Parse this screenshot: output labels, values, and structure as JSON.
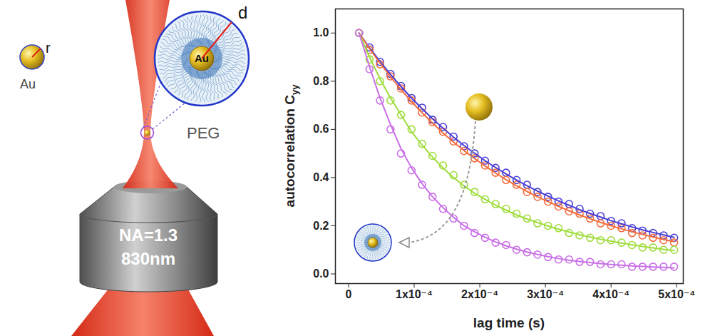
{
  "diagram": {
    "particle": {
      "label": "Au",
      "radius_label": "r"
    },
    "zoom": {
      "core_label": "Au",
      "shell_radius_label": "d",
      "shell_label": "PEG"
    },
    "objective": {
      "na_label": "NA=1.3",
      "wavelength_label": "830nm"
    }
  },
  "chart_data": {
    "type": "scatter",
    "xlabel": "lag time (s)",
    "ylabel": "autocorrelation C",
    "ylabel_subscript": "yy",
    "xlim": [
      -2e-05,
      0.00051
    ],
    "ylim": [
      -0.04,
      1.1
    ],
    "xticks": [
      0,
      {
        "value": 0.0001,
        "label": "1x10⁻⁴"
      },
      {
        "value": 0.0002,
        "label": "2x10⁻⁴"
      },
      {
        "value": 0.0003,
        "label": "3x10⁻⁴"
      },
      {
        "value": 0.0004,
        "label": "4x10⁻⁴"
      },
      {
        "value": 0.0005,
        "label": "5x10⁻⁴"
      }
    ],
    "yticks": [
      {
        "value": 0,
        "label": "0.0"
      },
      0.2,
      0.4,
      0.6,
      0.8,
      {
        "value": 1,
        "label": "1.0"
      }
    ],
    "grid": false,
    "x": [
      1.6e-05,
      3.2e-05,
      4.8e-05,
      6.4e-05,
      8e-05,
      9.6e-05,
      0.000112,
      0.000128,
      0.000144,
      0.00016,
      0.000176,
      0.000192,
      0.000208,
      0.000224,
      0.00024,
      0.000256,
      0.000272,
      0.000288,
      0.000304,
      0.00032,
      0.000336,
      0.000352,
      0.000368,
      0.000384,
      0.0004,
      0.000416,
      0.000432,
      0.000448,
      0.000464,
      0.00048,
      0.000496
    ],
    "series": [
      {
        "type": "scatter",
        "marker": "circle",
        "color": "#4a3fd6",
        "values": [
          1,
          0.94,
          0.88,
          0.83,
          0.78,
          0.73,
          0.69,
          0.64,
          0.61,
          0.57,
          0.53,
          0.5,
          0.47,
          0.44,
          0.42,
          0.39,
          0.37,
          0.34,
          0.32,
          0.3,
          0.29,
          0.27,
          0.25,
          0.24,
          0.22,
          0.21,
          0.19,
          0.18,
          0.17,
          0.16,
          0.15
        ]
      },
      {
        "type": "scatter",
        "marker": "circle",
        "color": "#f26d3d",
        "values": [
          1,
          0.93,
          0.87,
          0.82,
          0.77,
          0.72,
          0.67,
          0.63,
          0.59,
          0.55,
          0.51,
          0.48,
          0.45,
          0.42,
          0.39,
          0.37,
          0.34,
          0.32,
          0.3,
          0.28,
          0.26,
          0.25,
          0.23,
          0.21,
          0.2,
          0.19,
          0.17,
          0.16,
          0.15,
          0.14,
          0.13
        ]
      },
      {
        "type": "scatter",
        "marker": "circle",
        "color": "#9fdc3c",
        "values": [
          1,
          0.89,
          0.8,
          0.72,
          0.66,
          0.6,
          0.54,
          0.49,
          0.45,
          0.41,
          0.37,
          0.34,
          0.31,
          0.29,
          0.27,
          0.25,
          0.23,
          0.21,
          0.2,
          0.19,
          0.17,
          0.16,
          0.15,
          0.14,
          0.14,
          0.13,
          0.12,
          0.11,
          0.11,
          0.1,
          0.1
        ]
      },
      {
        "type": "scatter",
        "marker": "circle",
        "color": "#c86ee6",
        "values": [
          1,
          0.85,
          0.72,
          0.6,
          0.5,
          0.43,
          0.37,
          0.32,
          0.27,
          0.23,
          0.2,
          0.17,
          0.15,
          0.13,
          0.12,
          0.1,
          0.09,
          0.08,
          0.07,
          0.06,
          0.06,
          0.05,
          0.05,
          0.04,
          0.04,
          0.04,
          0.03,
          0.03,
          0.03,
          0.03,
          0.03
        ]
      },
      {
        "type": "line",
        "line_style": "solid",
        "color": "#4a3fd6",
        "values": [
          1,
          0.939,
          0.882,
          0.828,
          0.778,
          0.73,
          0.686,
          0.644,
          0.605,
          0.568,
          0.533,
          0.501,
          0.47,
          0.442,
          0.415,
          0.39,
          0.366,
          0.344,
          0.323,
          0.303,
          0.285,
          0.267,
          0.251,
          0.236,
          0.221,
          0.208,
          0.195,
          0.183,
          0.172,
          0.162,
          0.152
        ]
      },
      {
        "type": "line",
        "line_style": "solid",
        "color": "#f26d3d",
        "values": [
          1,
          0.935,
          0.875,
          0.818,
          0.765,
          0.715,
          0.669,
          0.626,
          0.585,
          0.547,
          0.512,
          0.479,
          0.448,
          0.419,
          0.391,
          0.366,
          0.342,
          0.32,
          0.3,
          0.28,
          0.262,
          0.245,
          0.229,
          0.214,
          0.2,
          0.187,
          0.175,
          0.164,
          0.153,
          0.143,
          0.134
        ]
      },
      {
        "type": "line",
        "line_style": "solid",
        "color": "#9fdc3c",
        "values": [
          1,
          0.9,
          0.81,
          0.73,
          0.66,
          0.59,
          0.535,
          0.485,
          0.44,
          0.4,
          0.365,
          0.335,
          0.31,
          0.285,
          0.265,
          0.245,
          0.228,
          0.213,
          0.199,
          0.186,
          0.174,
          0.163,
          0.153,
          0.144,
          0.136,
          0.128,
          0.121,
          0.114,
          0.108,
          0.102,
          0.097
        ]
      },
      {
        "type": "line",
        "line_style": "solid",
        "color": "#c86ee6",
        "values": [
          1,
          0.86,
          0.73,
          0.62,
          0.52,
          0.44,
          0.375,
          0.32,
          0.275,
          0.235,
          0.2,
          0.175,
          0.152,
          0.133,
          0.117,
          0.103,
          0.091,
          0.081,
          0.072,
          0.064,
          0.057,
          0.052,
          0.047,
          0.043,
          0.039,
          0.036,
          0.033,
          0.031,
          0.029,
          0.027,
          0.025
        ]
      }
    ]
  }
}
